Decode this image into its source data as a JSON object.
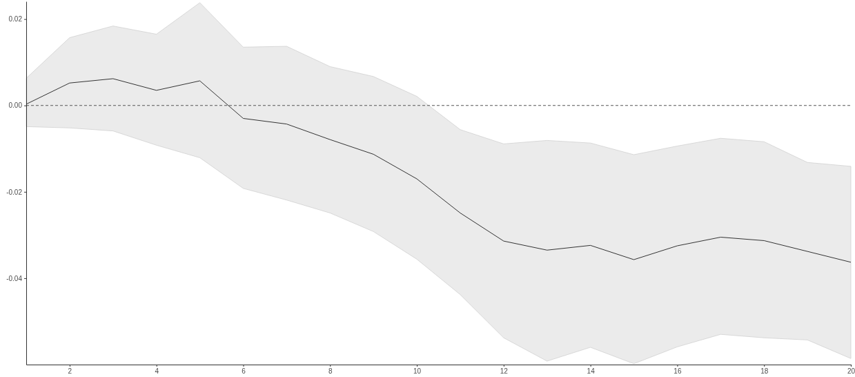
{
  "chart_data": {
    "type": "line",
    "x": [
      1,
      2,
      3,
      4,
      5,
      6,
      7,
      8,
      9,
      10,
      11,
      12,
      13,
      14,
      15,
      16,
      17,
      18,
      19,
      20
    ],
    "series": [
      {
        "color": "#333333",
        "values": [
          0.0003,
          0.0052,
          0.0062,
          0.0035,
          0.0057,
          -0.003,
          -0.0043,
          -0.0079,
          -0.0113,
          -0.017,
          -0.0249,
          -0.0314,
          -0.0335,
          -0.0324,
          -0.0357,
          -0.0325,
          -0.0305,
          -0.0313,
          -0.0338,
          -0.0363
        ],
        "lower": [
          -0.0049,
          -0.0052,
          -0.0059,
          -0.0092,
          -0.0121,
          -0.0192,
          -0.0219,
          -0.0249,
          -0.0292,
          -0.0356,
          -0.0438,
          -0.0538,
          -0.0592,
          -0.056,
          -0.0598,
          -0.0559,
          -0.053,
          -0.0538,
          -0.0543,
          -0.0586
        ],
        "upper": [
          0.0063,
          0.0157,
          0.0184,
          0.0165,
          0.0238,
          0.0135,
          0.0137,
          0.009,
          0.0067,
          0.0021,
          -0.0056,
          -0.0089,
          -0.0081,
          -0.0087,
          -0.0114,
          -0.0094,
          -0.0076,
          -0.0084,
          -0.0132,
          -0.0141
        ]
      }
    ],
    "xlim": [
      1,
      20
    ],
    "xticks": [
      2,
      4,
      6,
      8,
      10,
      12,
      14,
      16,
      18,
      20
    ],
    "ylim": [
      -0.06,
      0.0241
    ],
    "yticks": [
      {
        "value": -0.04,
        "label": "-0.04"
      },
      {
        "value": -0.02,
        "label": "-0.02"
      },
      {
        "value": 0,
        "label": "0.00"
      },
      {
        "value": 0.02,
        "label": "0.02"
      }
    ],
    "ref_lines": [
      {
        "axis": "y",
        "value": 0,
        "color": "#555555",
        "line_style": "dashed"
      }
    ],
    "grid": false,
    "line_style": "solid",
    "marker": "none"
  }
}
